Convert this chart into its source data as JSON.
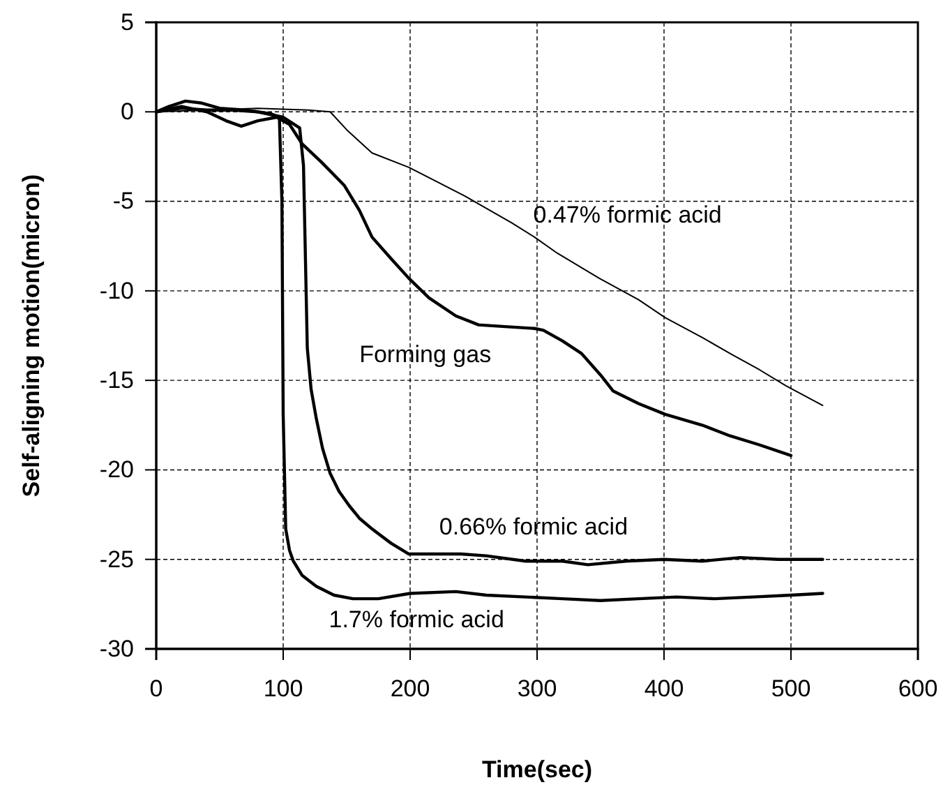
{
  "chart_data": {
    "type": "line",
    "xlabel": "Time(sec)",
    "ylabel": "Self-aligning motion(micron)",
    "xlim": [
      0,
      600
    ],
    "ylim": [
      -30,
      5
    ],
    "xticks": [
      0,
      100,
      200,
      300,
      400,
      500,
      600
    ],
    "yticks": [
      -30,
      -25,
      -20,
      -15,
      -10,
      -5,
      0,
      5
    ],
    "grid": true,
    "marker": "none",
    "line_style": "solid",
    "series": [
      {
        "name": "0.47% formic acid",
        "color": "#000000",
        "x": [
          0,
          40,
          80,
          120,
          137,
          150,
          170,
          199,
          243,
          280,
          298,
          316,
          349,
          380,
          401,
          430,
          452,
          475,
          496,
          525
        ],
        "values": [
          0,
          0.1,
          0.2,
          0.1,
          0,
          -1,
          -2.3,
          -3.1,
          -4.7,
          -6.2,
          -7,
          -7.9,
          -9.3,
          -10.5,
          -11.5,
          -12.6,
          -13.5,
          -14.4,
          -15.3,
          -16.4
        ]
      },
      {
        "name": "Forming gas",
        "color": "#000000",
        "x": [
          0,
          20,
          40,
          55,
          67,
          80,
          95,
          105,
          115,
          130,
          148,
          160,
          170,
          185,
          199,
          215,
          236,
          254,
          275,
          298,
          305,
          320,
          335,
          350,
          360,
          380,
          401,
          430,
          452,
          475,
          500
        ],
        "values": [
          0,
          0.3,
          0,
          -0.5,
          -0.8,
          -0.5,
          -0.3,
          -0.7,
          -1.8,
          -2.8,
          -4.1,
          -5.5,
          -7,
          -8.2,
          -9.3,
          -10.4,
          -11.4,
          -11.9,
          -12,
          -12.1,
          -12.2,
          -12.8,
          -13.5,
          -14.7,
          -15.6,
          -16.3,
          -16.9,
          -17.5,
          -18.1,
          -18.6,
          -19.2
        ]
      },
      {
        "name": "0.66% formic acid",
        "color": "#000000",
        "x": [
          0,
          20,
          40,
          60,
          80,
          100,
          113,
          116,
          119,
          122,
          126,
          131,
          137,
          144,
          152,
          160,
          170,
          185,
          199,
          220,
          240,
          260,
          291,
          320,
          340,
          370,
          400,
          430,
          460,
          490,
          525
        ],
        "values": [
          0,
          0.2,
          0.1,
          0.1,
          0,
          -0.3,
          -0.9,
          -3,
          -13.2,
          -15.5,
          -17.1,
          -18.8,
          -20.2,
          -21.2,
          -22,
          -22.7,
          -23.3,
          -24.1,
          -24.7,
          -24.7,
          -24.7,
          -24.8,
          -25.1,
          -25.1,
          -25.3,
          -25.1,
          -25,
          -25.1,
          -24.9,
          -25,
          -25
        ]
      },
      {
        "name": "1.7% formic acid",
        "color": "#000000",
        "x": [
          0,
          10,
          23,
          35,
          50,
          70,
          90,
          97,
          99,
          100,
          102,
          105,
          108,
          115,
          126,
          140,
          155,
          175,
          200,
          236,
          260,
          291,
          320,
          350,
          380,
          410,
          440,
          470,
          500,
          525
        ],
        "values": [
          0,
          0.3,
          0.6,
          0.5,
          0.2,
          0.1,
          -0.1,
          -0.3,
          -5,
          -16.9,
          -23.3,
          -24.5,
          -25.1,
          -25.9,
          -26.5,
          -27,
          -27.2,
          -27.2,
          -26.9,
          -26.8,
          -27,
          -27.1,
          -27.2,
          -27.3,
          -27.2,
          -27.1,
          -27.2,
          -27.1,
          -27,
          -26.9
        ]
      }
    ]
  }
}
